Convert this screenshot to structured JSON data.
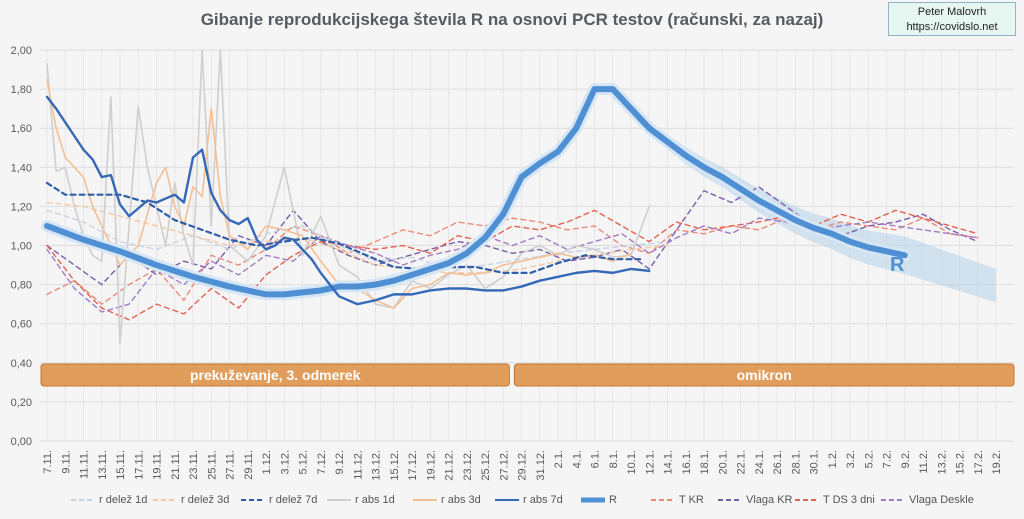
{
  "credit": {
    "author": "Peter Malovrh",
    "site": "https://covidslo.net"
  },
  "chart_data": {
    "type": "line",
    "title": "Gibanje reprodukcijskega števila R na osnovi PCR testov (računski, za nazaj)",
    "ylim": [
      0,
      2
    ],
    "yticks": [
      "0,00",
      "0,20",
      "0,40",
      "0,60",
      "0,80",
      "1,00",
      "1,20",
      "1,40",
      "1,60",
      "1,80",
      "2,00"
    ],
    "grid": true,
    "x_tick_labels": [
      "7.11.",
      "9.11.",
      "11.11.",
      "13.11.",
      "15.11.",
      "17.11.",
      "19.11.",
      "21.11.",
      "23.11.",
      "25.11.",
      "27.11.",
      "29.11.",
      "1.12.",
      "3.12.",
      "5.12.",
      "7.12.",
      "9.12.",
      "11.12.",
      "13.12.",
      "15.12.",
      "17.12.",
      "19.12.",
      "21.12.",
      "23.12.",
      "25.12.",
      "27.12.",
      "29.12.",
      "31.12.",
      "2.1.",
      "4.1.",
      "6.1.",
      "8.1.",
      "10.1.",
      "12.1.",
      "14.1.",
      "16.1.",
      "18.1.",
      "20.1.",
      "22.1.",
      "24.1.",
      "26.1.",
      "28.1.",
      "30.1.",
      "1.2.",
      "3.2.",
      "5.2.",
      "7.2.",
      "9.2.",
      "11.2.",
      "13.2.",
      "15.2.",
      "17.2.",
      "19.2."
    ],
    "periods": [
      {
        "label": "prekuževanje, 3. odmerek",
        "from_day": 0,
        "to_day": 51
      },
      {
        "label": "omikron",
        "from_day": 51,
        "to_day": 105
      }
    ],
    "r_label": "R",
    "series": [
      {
        "name": "r delež 1d",
        "color": "#c9d3e3",
        "style": "dashed",
        "x": [
          0,
          4,
          8,
          12,
          16,
          20,
          24,
          28,
          32,
          36,
          40,
          44,
          48,
          52,
          56,
          60,
          64,
          68
        ],
        "y": [
          1.18,
          1.12,
          1.02,
          0.98,
          1.05,
          0.98,
          1.06,
          1.1,
          1.0,
          0.92,
          0.94,
          0.88,
          0.9,
          0.93,
          0.96,
          0.98,
          1.0,
          1.02
        ]
      },
      {
        "name": "r delež 3d",
        "color": "#f3c9a6",
        "style": "dashed",
        "x": [
          0,
          4,
          8,
          12,
          16,
          20,
          24,
          28,
          32,
          36,
          40,
          44,
          48,
          52,
          56,
          60,
          64,
          68
        ],
        "y": [
          1.22,
          1.2,
          1.15,
          1.1,
          1.05,
          1.0,
          1.02,
          1.04,
          0.98,
          0.9,
          0.88,
          0.86,
          0.86,
          0.88,
          0.92,
          0.95,
          0.98,
          1.0
        ]
      },
      {
        "name": "r delež 7d",
        "color": "#2e5ea8",
        "style": "dashed",
        "x": [
          0,
          2,
          5,
          8,
          11,
          14,
          17,
          20,
          23,
          26,
          29,
          32,
          35,
          38,
          41,
          44,
          47,
          50,
          53,
          56,
          59,
          62,
          65
        ],
        "y": [
          1.32,
          1.26,
          1.26,
          1.26,
          1.22,
          1.13,
          1.08,
          1.03,
          1.0,
          1.02,
          1.04,
          1.01,
          0.95,
          0.89,
          0.88,
          0.89,
          0.89,
          0.86,
          0.86,
          0.91,
          0.95,
          0.93,
          0.93
        ]
      },
      {
        "name": "r abs 1d",
        "color": "#cfcfcf",
        "style": "solid",
        "x": [
          0,
          1,
          2,
          3,
          4,
          5,
          6,
          7,
          8,
          9,
          10,
          11,
          12,
          13,
          14,
          15,
          16,
          17,
          18,
          19,
          20,
          22,
          24,
          26,
          28,
          30,
          32,
          34,
          36,
          38,
          40,
          42,
          44,
          46,
          48,
          50,
          52,
          54,
          56,
          58,
          60,
          62,
          64,
          66
        ],
        "y": [
          1.93,
          1.38,
          1.4,
          1.2,
          1.05,
          0.95,
          0.92,
          1.76,
          0.5,
          1.1,
          1.71,
          1.4,
          1.2,
          1.0,
          1.32,
          1.05,
          0.9,
          2.0,
          1.1,
          2.0,
          1.0,
          0.92,
          1.05,
          1.4,
          0.95,
          1.15,
          0.9,
          0.84,
          0.7,
          0.68,
          0.82,
          0.78,
          0.85,
          0.9,
          0.78,
          0.84,
          0.96,
          1.0,
          0.95,
          1.0,
          0.98,
          0.94,
          0.95,
          1.2
        ]
      },
      {
        "name": "r abs 3d",
        "color": "#f4bf93",
        "style": "solid",
        "x": [
          0,
          1,
          2,
          3,
          4,
          5,
          6,
          8,
          10,
          12,
          13,
          14,
          15,
          16,
          17,
          18,
          19,
          20,
          22,
          24,
          26,
          28,
          30,
          32,
          34,
          36,
          38,
          40,
          42,
          44,
          46,
          48,
          50,
          52,
          54,
          56,
          58,
          60,
          62,
          64
        ],
        "y": [
          1.85,
          1.6,
          1.45,
          1.4,
          1.35,
          1.2,
          1.1,
          0.9,
          1.0,
          1.32,
          1.4,
          1.2,
          1.1,
          1.3,
          1.25,
          1.7,
          1.25,
          1.05,
          0.98,
          1.1,
          1.08,
          1.05,
          0.92,
          0.8,
          0.78,
          0.72,
          0.68,
          0.78,
          0.8,
          0.86,
          0.85,
          0.86,
          0.9,
          0.92,
          0.94,
          0.96,
          0.94,
          0.95,
          0.92,
          0.96
        ]
      },
      {
        "name": "r abs 7d",
        "color": "#3569b8",
        "style": "solid",
        "x": [
          0,
          1,
          2,
          3,
          4,
          5,
          6,
          7,
          8,
          9,
          10,
          11,
          12,
          13,
          14,
          15,
          16,
          17,
          18,
          19,
          20,
          21,
          22,
          23,
          24,
          25,
          26,
          27,
          28,
          29,
          30,
          32,
          34,
          36,
          38,
          40,
          42,
          44,
          46,
          48,
          50,
          52,
          54,
          56,
          58,
          60,
          62,
          64,
          66
        ],
        "y": [
          1.76,
          1.7,
          1.63,
          1.56,
          1.49,
          1.44,
          1.35,
          1.36,
          1.21,
          1.15,
          1.19,
          1.23,
          1.22,
          1.24,
          1.26,
          1.22,
          1.45,
          1.49,
          1.27,
          1.18,
          1.13,
          1.11,
          1.14,
          1.03,
          0.98,
          1.0,
          1.04,
          1.03,
          0.98,
          0.93,
          0.86,
          0.74,
          0.7,
          0.72,
          0.75,
          0.75,
          0.77,
          0.78,
          0.78,
          0.77,
          0.77,
          0.79,
          0.82,
          0.84,
          0.86,
          0.87,
          0.86,
          0.88,
          0.87
        ]
      },
      {
        "name": "R",
        "color": "#4f8fd4",
        "style": "thick",
        "x": [
          0,
          4,
          8,
          12,
          16,
          20,
          24,
          26,
          28,
          30,
          32,
          34,
          36,
          38,
          40,
          42,
          44,
          46,
          48,
          50,
          52,
          54,
          56,
          58,
          60,
          62,
          64,
          66,
          68,
          70,
          72,
          74,
          76,
          78,
          80,
          82,
          84,
          86,
          88,
          90,
          92,
          94
        ],
        "y": [
          1.1,
          1.03,
          0.97,
          0.9,
          0.84,
          0.79,
          0.75,
          0.75,
          0.76,
          0.77,
          0.79,
          0.79,
          0.8,
          0.82,
          0.85,
          0.88,
          0.91,
          0.96,
          1.04,
          1.16,
          1.35,
          1.42,
          1.48,
          1.6,
          1.8,
          1.8,
          1.7,
          1.6,
          1.53,
          1.46,
          1.4,
          1.35,
          1.29,
          1.23,
          1.18,
          1.13,
          1.09,
          1.06,
          1.02,
          0.99,
          0.97,
          0.95
        ]
      },
      {
        "name": "T KR",
        "color": "#ec8a78",
        "style": "dashed",
        "x": [
          0,
          3,
          6,
          9,
          12,
          15,
          18,
          21,
          24,
          27,
          30,
          33,
          36,
          39,
          42,
          45,
          48,
          51,
          54,
          57,
          60,
          63,
          66,
          69,
          72,
          75,
          78,
          81,
          84,
          87,
          90,
          93,
          96,
          99,
          102
        ],
        "y": [
          0.75,
          0.82,
          0.7,
          0.8,
          0.88,
          0.72,
          0.95,
          0.9,
          0.98,
          1.1,
          1.05,
          0.96,
          1.02,
          1.08,
          1.05,
          1.12,
          1.1,
          1.14,
          1.12,
          1.08,
          1.1,
          1.0,
          0.96,
          1.08,
          1.06,
          1.1,
          1.08,
          1.14,
          1.08,
          1.12,
          1.1,
          1.08,
          1.14,
          1.06,
          1.04
        ]
      },
      {
        "name": "Vlaga KR",
        "color": "#7b5ea8",
        "style": "dashed",
        "x": [
          0,
          3,
          6,
          9,
          12,
          15,
          18,
          21,
          24,
          27,
          30,
          33,
          36,
          39,
          42,
          45,
          48,
          51,
          54,
          57,
          60,
          63,
          66,
          69,
          72,
          75,
          78,
          81,
          84,
          87,
          90,
          93,
          96,
          99,
          102
        ],
        "y": [
          1.0,
          0.9,
          0.8,
          0.95,
          0.85,
          0.92,
          0.88,
          1.05,
          1.0,
          1.18,
          1.02,
          0.95,
          0.9,
          0.94,
          0.98,
          1.02,
          1.0,
          0.96,
          0.98,
          0.92,
          0.94,
          0.98,
          0.88,
          1.08,
          1.28,
          1.22,
          1.3,
          1.2,
          1.1,
          1.05,
          1.1,
          1.12,
          1.16,
          1.08,
          1.02
        ]
      },
      {
        "name": "T DS 3 dni",
        "color": "#e2624f",
        "style": "dashed",
        "x": [
          0,
          3,
          6,
          9,
          12,
          15,
          18,
          21,
          24,
          27,
          30,
          33,
          36,
          39,
          42,
          45,
          48,
          51,
          54,
          57,
          60,
          63,
          66,
          69,
          72,
          75,
          78,
          81,
          84,
          87,
          90,
          93,
          96,
          99,
          102
        ],
        "y": [
          1.0,
          0.82,
          0.68,
          0.62,
          0.7,
          0.65,
          0.78,
          0.68,
          0.85,
          0.95,
          1.02,
          1.0,
          0.98,
          1.0,
          0.96,
          1.05,
          1.02,
          1.1,
          1.08,
          1.12,
          1.18,
          1.1,
          1.02,
          1.12,
          1.08,
          1.1,
          1.12,
          1.15,
          1.1,
          1.16,
          1.12,
          1.18,
          1.14,
          1.1,
          1.06
        ]
      },
      {
        "name": "Vlaga Deskle",
        "color": "#a07cc4",
        "style": "dashed",
        "x": [
          0,
          3,
          6,
          9,
          12,
          15,
          18,
          21,
          24,
          27,
          30,
          33,
          36,
          39,
          42,
          45,
          48,
          51,
          54,
          57,
          60,
          63,
          66,
          69,
          72,
          75,
          78,
          81,
          84,
          87,
          90,
          93,
          96,
          99,
          102
        ],
        "y": [
          0.98,
          0.78,
          0.66,
          0.7,
          0.88,
          0.8,
          0.92,
          0.85,
          0.95,
          0.92,
          1.05,
          1.0,
          0.96,
          0.9,
          0.95,
          0.98,
          1.05,
          1.0,
          1.05,
          0.98,
          1.02,
          1.06,
          0.96,
          1.04,
          1.1,
          1.06,
          1.14,
          1.12,
          1.08,
          1.1,
          1.12,
          1.1,
          1.08,
          1.06,
          1.04
        ]
      }
    ]
  }
}
